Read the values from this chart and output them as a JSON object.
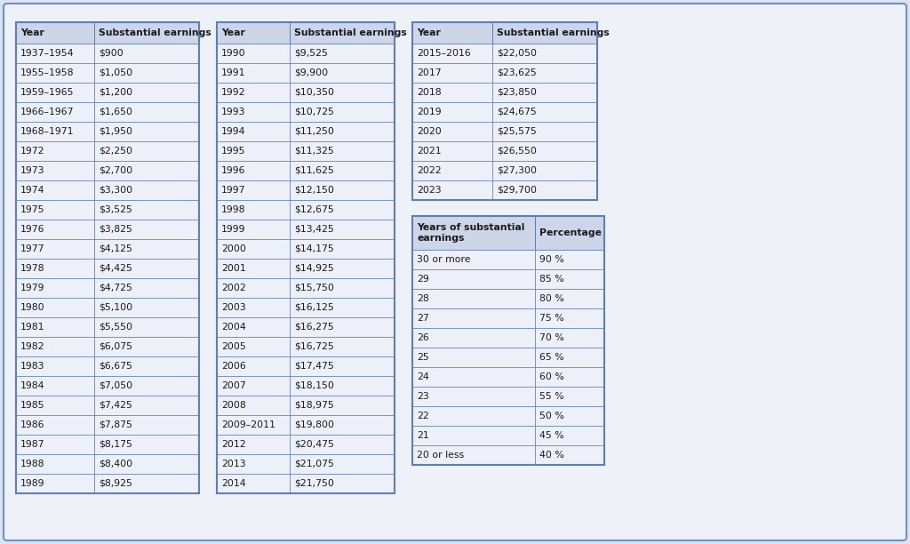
{
  "table1_headers": [
    "Year",
    "Substantial earnings"
  ],
  "table1_rows": [
    [
      "1937–1954",
      "$900"
    ],
    [
      "1955–1958",
      "$1,050"
    ],
    [
      "1959–1965",
      "$1,200"
    ],
    [
      "1966–1967",
      "$1,650"
    ],
    [
      "1968–1971",
      "$1,950"
    ],
    [
      "1972",
      "$2,250"
    ],
    [
      "1973",
      "$2,700"
    ],
    [
      "1974",
      "$3,300"
    ],
    [
      "1975",
      "$3,525"
    ],
    [
      "1976",
      "$3,825"
    ],
    [
      "1977",
      "$4,125"
    ],
    [
      "1978",
      "$4,425"
    ],
    [
      "1979",
      "$4,725"
    ],
    [
      "1980",
      "$5,100"
    ],
    [
      "1981",
      "$5,550"
    ],
    [
      "1982",
      "$6,075"
    ],
    [
      "1983",
      "$6,675"
    ],
    [
      "1984",
      "$7,050"
    ],
    [
      "1985",
      "$7,425"
    ],
    [
      "1986",
      "$7,875"
    ],
    [
      "1987",
      "$8,175"
    ],
    [
      "1988",
      "$8,400"
    ],
    [
      "1989",
      "$8,925"
    ]
  ],
  "table2_headers": [
    "Year",
    "Substantial earnings"
  ],
  "table2_rows": [
    [
      "1990",
      "$9,525"
    ],
    [
      "1991",
      "$9,900"
    ],
    [
      "1992",
      "$10,350"
    ],
    [
      "1993",
      "$10,725"
    ],
    [
      "1994",
      "$11,250"
    ],
    [
      "1995",
      "$11,325"
    ],
    [
      "1996",
      "$11,625"
    ],
    [
      "1997",
      "$12,150"
    ],
    [
      "1998",
      "$12,675"
    ],
    [
      "1999",
      "$13,425"
    ],
    [
      "2000",
      "$14,175"
    ],
    [
      "2001",
      "$14,925"
    ],
    [
      "2002",
      "$15,750"
    ],
    [
      "2003",
      "$16,125"
    ],
    [
      "2004",
      "$16,275"
    ],
    [
      "2005",
      "$16,725"
    ],
    [
      "2006",
      "$17,475"
    ],
    [
      "2007",
      "$18,150"
    ],
    [
      "2008",
      "$18,975"
    ],
    [
      "2009–2011",
      "$19,800"
    ],
    [
      "2012",
      "$20,475"
    ],
    [
      "2013",
      "$21,075"
    ],
    [
      "2014",
      "$21,750"
    ]
  ],
  "table3_headers": [
    "Year",
    "Substantial earnings"
  ],
  "table3_rows": [
    [
      "2015–2016",
      "$22,050"
    ],
    [
      "2017",
      "$23,625"
    ],
    [
      "2018",
      "$23,850"
    ],
    [
      "2019",
      "$24,675"
    ],
    [
      "2020",
      "$25,575"
    ],
    [
      "2021",
      "$26,550"
    ],
    [
      "2022",
      "$27,300"
    ],
    [
      "2023",
      "$29,700"
    ]
  ],
  "table4_headers": [
    "Years of substantial\nearnings",
    "Percentage"
  ],
  "table4_rows": [
    [
      "30 or more",
      "90 %"
    ],
    [
      "29",
      "85 %"
    ],
    [
      "28",
      "80 %"
    ],
    [
      "27",
      "75 %"
    ],
    [
      "26",
      "70 %"
    ],
    [
      "25",
      "65 %"
    ],
    [
      "24",
      "60 %"
    ],
    [
      "23",
      "55 %"
    ],
    [
      "22",
      "50 %"
    ],
    [
      "21",
      "45 %"
    ],
    [
      "20 or less",
      "40 %"
    ]
  ],
  "border_color": "#5b7fba",
  "header_bg": "#cdd5e8",
  "row_bg": "#edf0f8",
  "cell_text_color": "#1a1a1a",
  "outer_bg": "#dce3f0",
  "inner_bg": "#eef1f8",
  "outer_border_color": "#7090c0",
  "font_size": 7.8,
  "header_font_size": 7.8,
  "fig_width": 10.24,
  "fig_height": 6.12,
  "dpi": 100
}
